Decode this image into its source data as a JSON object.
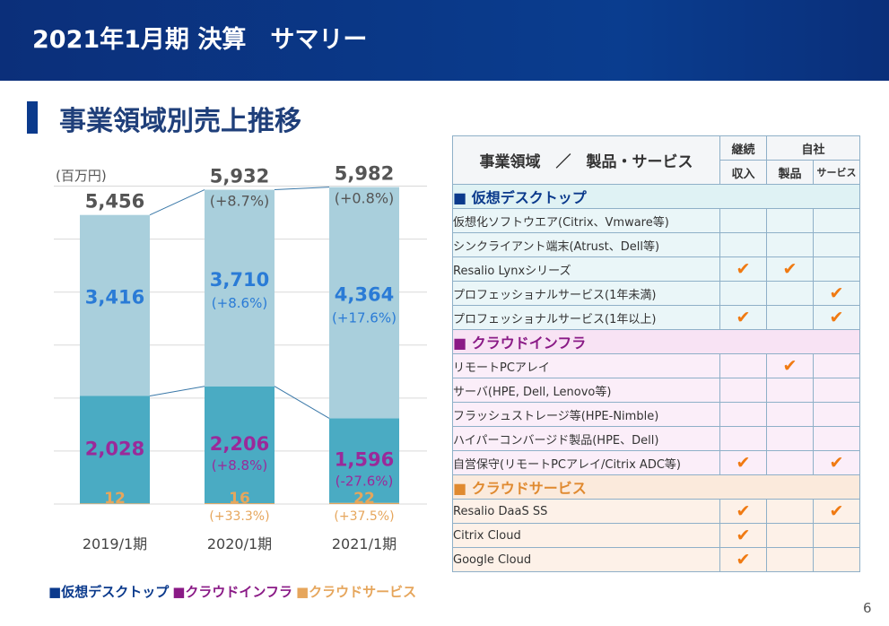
{
  "header": {
    "title": "2021年1月期 決算　サマリー"
  },
  "section": {
    "title": "事業領域別売上推移"
  },
  "chart_data": {
    "type": "bar",
    "stacked": true,
    "unit_label": "(百万円)",
    "categories": [
      "2019/1期",
      "2020/1期",
      "2021/1期"
    ],
    "totals": [
      5456,
      5932,
      5982
    ],
    "total_labels": [
      "5,456",
      "5,932",
      "5,982"
    ],
    "total_growth": [
      "",
      "(+8.7%)",
      "(+0.8%)"
    ],
    "ylim": [
      0,
      6500
    ],
    "grid": true,
    "series": [
      {
        "name": "仮想デスクトップ",
        "color": "#a9cfdc",
        "label_color": "#2a7bd6",
        "values": [
          3416,
          3710,
          4364
        ],
        "labels": [
          "3,416",
          "3,710",
          "4,364"
        ],
        "growth": [
          "",
          "(+8.6%)",
          "(+17.6%)"
        ]
      },
      {
        "name": "クラウドインフラ",
        "color": "#4aabc3",
        "label_color": "#9a2a9a",
        "values": [
          2028,
          2206,
          1596
        ],
        "labels": [
          "2,028",
          "2,206",
          "1,596"
        ],
        "growth": [
          "",
          "(+8.8%)",
          "(-27.6%)"
        ]
      },
      {
        "name": "クラウドサービス",
        "color": "#e6a65c",
        "label_color": "#e6a65c",
        "values": [
          12,
          16,
          22
        ],
        "labels": [
          "12",
          "16",
          "22"
        ],
        "growth": [
          "",
          "(+33.3%)",
          "(+37.5%)"
        ]
      }
    ],
    "legend": [
      {
        "marker": "■",
        "text": "仮想デスクトップ",
        "color": "#0b3a8c"
      },
      {
        "marker": "■",
        "text": "クラウドインフラ",
        "color": "#8a1a86"
      },
      {
        "marker": "■",
        "text": "クラウドサービス",
        "color": "#e6a65c"
      }
    ],
    "legend_position": "bottom"
  },
  "table": {
    "header_main": "事業領域　／　製品・サービス",
    "col_recurring": "継続",
    "col_recurring_sub": "収入",
    "col_own": "自社",
    "col_product": "製品",
    "col_service": "サービス",
    "check": "✔",
    "groups": [
      {
        "title": "■ 仮想デスクトップ",
        "kind": "vd",
        "rows": [
          {
            "name": "仮想化ソフトウエア(Citrix、Vmware等)",
            "recurring": false,
            "product": false,
            "service": false
          },
          {
            "name": "シンクライアント端末(Atrust、Dell等)",
            "recurring": false,
            "product": false,
            "service": false
          },
          {
            "name": "Resalio Lynxシリーズ",
            "recurring": true,
            "product": true,
            "service": false
          },
          {
            "name": "プロフェッショナルサービス(1年未満)",
            "recurring": false,
            "product": false,
            "service": true
          },
          {
            "name": "プロフェッショナルサービス(1年以上)",
            "recurring": true,
            "product": false,
            "service": true
          }
        ]
      },
      {
        "title": "■ クラウドインフラ",
        "kind": "ci",
        "rows": [
          {
            "name": "リモートPCアレイ",
            "recurring": false,
            "product": true,
            "service": false
          },
          {
            "name": "サーバ(HPE, Dell, Lenovo等)",
            "recurring": false,
            "product": false,
            "service": false
          },
          {
            "name": "フラッシュストレージ等(HPE-Nimble)",
            "recurring": false,
            "product": false,
            "service": false
          },
          {
            "name": "ハイパーコンバージド製品(HPE、Dell)",
            "recurring": false,
            "product": false,
            "service": false
          },
          {
            "name": "自営保守(リモートPCアレイ/Citrix ADC等)",
            "recurring": true,
            "product": false,
            "service": true
          }
        ]
      },
      {
        "title": "■ クラウドサービス",
        "kind": "cs",
        "rows": [
          {
            "name": "Resalio DaaS SS",
            "recurring": true,
            "product": false,
            "service": true
          },
          {
            "name": "Citrix Cloud",
            "recurring": true,
            "product": false,
            "service": false
          },
          {
            "name": "Google Cloud",
            "recurring": true,
            "product": false,
            "service": false
          }
        ]
      }
    ]
  },
  "page": {
    "number": "6"
  }
}
